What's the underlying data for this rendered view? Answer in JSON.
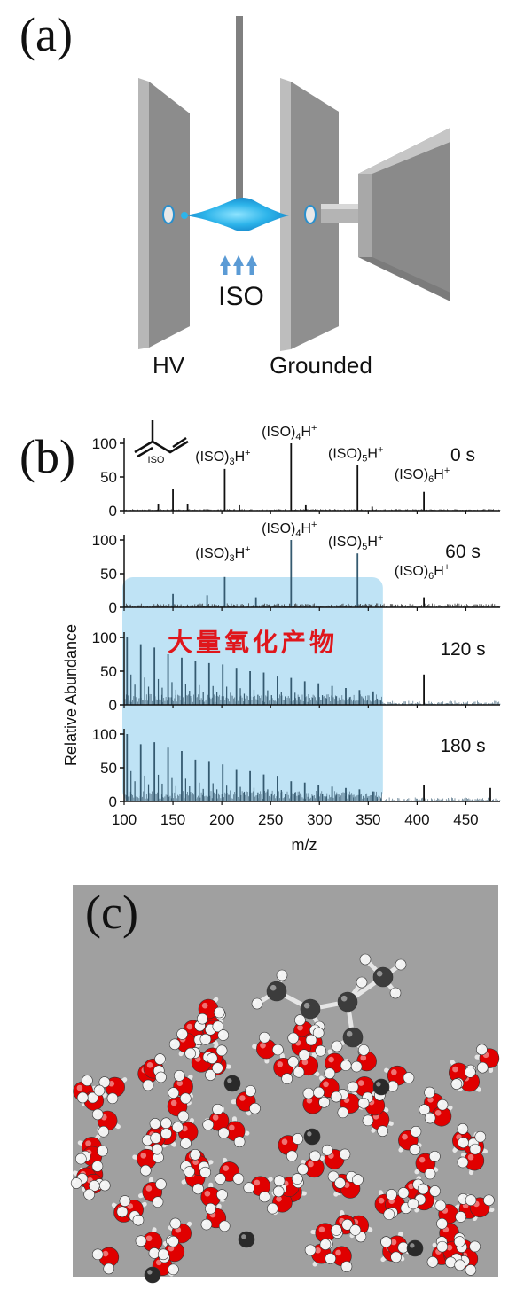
{
  "panel_a": {
    "label": "(a)",
    "source_label": "ISO",
    "left_electrode_label": "HV",
    "right_electrode_label": "Grounded"
  },
  "panel_b": {
    "label": "(b)",
    "structure_label": "ISO",
    "y_axis_label": "Relative Abundance",
    "highlight_text": "大量氧化产物",
    "highlight_color": "#bfe3f5",
    "highlight_text_color": "#e0161b",
    "chart_data": {
      "type": "line",
      "xlabel": "m/z",
      "ylabel": "Relative Abundance",
      "xlim": [
        100,
        485
      ],
      "ylim": [
        0,
        100
      ],
      "x_ticks": [
        100,
        150,
        200,
        250,
        300,
        350,
        400,
        450
      ],
      "y_ticks": [
        0,
        50,
        100
      ],
      "highlight_range": [
        100,
        365
      ],
      "spectra": [
        {
          "time_label": "0 s",
          "peaks": [
            {
              "mz": 203,
              "intensity": 62
            },
            {
              "mz": 271,
              "intensity": 100
            },
            {
              "mz": 339,
              "intensity": 68
            },
            {
              "mz": 407,
              "intensity": 28
            },
            {
              "mz": 165,
              "intensity": 10
            },
            {
              "mz": 150,
              "intensity": 32
            },
            {
              "mz": 135,
              "intensity": 10
            },
            {
              "mz": 218,
              "intensity": 8
            },
            {
              "mz": 286,
              "intensity": 8
            },
            {
              "mz": 354,
              "intensity": 6
            }
          ],
          "annotations": [
            {
              "text": "(ISO)",
              "sub": "3",
              "suffix": "H",
              "sup": "+",
              "mz": 203
            },
            {
              "text": "(ISO)",
              "sub": "4",
              "suffix": "H",
              "sup": "+",
              "mz": 271
            },
            {
              "text": "(ISO)",
              "sub": "5",
              "suffix": "H",
              "sup": "+",
              "mz": 339
            },
            {
              "text": "(ISO)",
              "sub": "6",
              "suffix": "H",
              "sup": "+",
              "mz": 407
            }
          ]
        },
        {
          "time_label": "60 s",
          "peaks": [
            {
              "mz": 203,
              "intensity": 45
            },
            {
              "mz": 271,
              "intensity": 100
            },
            {
              "mz": 339,
              "intensity": 80
            },
            {
              "mz": 407,
              "intensity": 15
            },
            {
              "mz": 150,
              "intensity": 20
            },
            {
              "mz": 185,
              "intensity": 18
            },
            {
              "mz": 235,
              "intensity": 15
            }
          ],
          "annotations": [
            {
              "text": "(ISO)",
              "sub": "3",
              "suffix": "H",
              "sup": "+",
              "mz": 203
            },
            {
              "text": "(ISO)",
              "sub": "4",
              "suffix": "H",
              "sup": "+",
              "mz": 271
            },
            {
              "text": "(ISO)",
              "sub": "5",
              "suffix": "H",
              "sup": "+",
              "mz": 339
            },
            {
              "text": "(ISO)",
              "sub": "6",
              "suffix": "H",
              "sup": "+",
              "mz": 407
            }
          ]
        },
        {
          "time_label": "120 s",
          "peaks": [
            {
              "mz": 103,
              "intensity": 100
            },
            {
              "mz": 117,
              "intensity": 90
            },
            {
              "mz": 131,
              "intensity": 85
            },
            {
              "mz": 145,
              "intensity": 75
            },
            {
              "mz": 159,
              "intensity": 70
            },
            {
              "mz": 173,
              "intensity": 65
            },
            {
              "mz": 187,
              "intensity": 62
            },
            {
              "mz": 201,
              "intensity": 60
            },
            {
              "mz": 215,
              "intensity": 55
            },
            {
              "mz": 229,
              "intensity": 50
            },
            {
              "mz": 243,
              "intensity": 48
            },
            {
              "mz": 257,
              "intensity": 42
            },
            {
              "mz": 271,
              "intensity": 40
            },
            {
              "mz": 285,
              "intensity": 35
            },
            {
              "mz": 299,
              "intensity": 32
            },
            {
              "mz": 313,
              "intensity": 28
            },
            {
              "mz": 327,
              "intensity": 25
            },
            {
              "mz": 341,
              "intensity": 22
            },
            {
              "mz": 355,
              "intensity": 20
            },
            {
              "mz": 407,
              "intensity": 45
            }
          ],
          "annotations": []
        },
        {
          "time_label": "180 s",
          "peaks": [
            {
              "mz": 103,
              "intensity": 100
            },
            {
              "mz": 117,
              "intensity": 85
            },
            {
              "mz": 131,
              "intensity": 88
            },
            {
              "mz": 145,
              "intensity": 80
            },
            {
              "mz": 159,
              "intensity": 75
            },
            {
              "mz": 173,
              "intensity": 62
            },
            {
              "mz": 187,
              "intensity": 60
            },
            {
              "mz": 201,
              "intensity": 55
            },
            {
              "mz": 215,
              "intensity": 48
            },
            {
              "mz": 229,
              "intensity": 45
            },
            {
              "mz": 243,
              "intensity": 40
            },
            {
              "mz": 257,
              "intensity": 38
            },
            {
              "mz": 271,
              "intensity": 30
            },
            {
              "mz": 285,
              "intensity": 28
            },
            {
              "mz": 299,
              "intensity": 25
            },
            {
              "mz": 313,
              "intensity": 22
            },
            {
              "mz": 327,
              "intensity": 20
            },
            {
              "mz": 341,
              "intensity": 18
            },
            {
              "mz": 355,
              "intensity": 15
            },
            {
              "mz": 407,
              "intensity": 25
            },
            {
              "mz": 475,
              "intensity": 20
            }
          ],
          "annotations": []
        }
      ]
    }
  },
  "panel_c": {
    "label": "(c)"
  }
}
